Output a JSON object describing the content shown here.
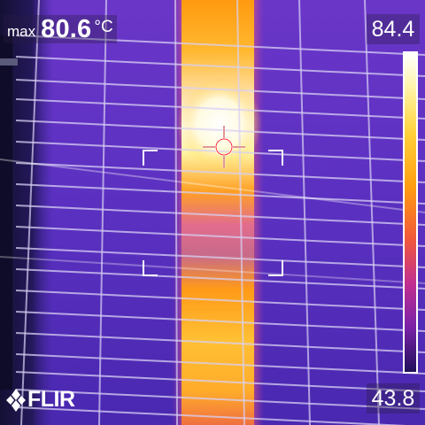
{
  "max_readout": {
    "label": "max",
    "value": "80.6",
    "unit": "°C"
  },
  "scale": {
    "max": "84.4",
    "min": "43.8"
  },
  "logo": {
    "text": "FLIR"
  },
  "palette": [
    "#ffffff",
    "#fff6b0",
    "#ffd23a",
    "#ff9d12",
    "#f25a3a",
    "#c2308f",
    "#7a22a8",
    "#20105a"
  ],
  "icons": [
    "crosshair-icon",
    "flir-snowflake-icon"
  ]
}
